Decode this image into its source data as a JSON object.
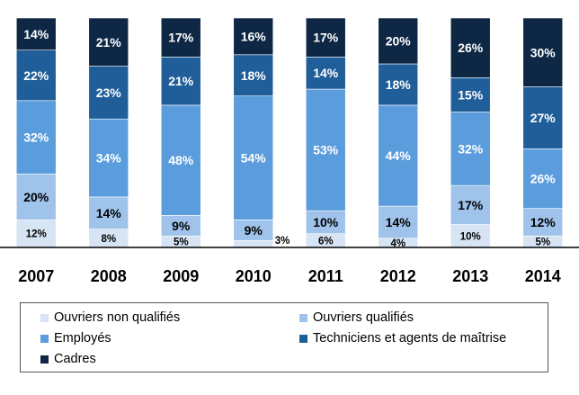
{
  "chart_data": {
    "type": "bar",
    "stacked": true,
    "normalized_percent": true,
    "categories": [
      "2007",
      "2008",
      "2009",
      "2010",
      "2011",
      "2012",
      "2013",
      "2014"
    ],
    "series": [
      {
        "name": "Ouvriers non qualifiés",
        "color": "#d6e4f4",
        "values": [
          12,
          8,
          5,
          3,
          6,
          4,
          10,
          5
        ],
        "labels": [
          "12%",
          "8%",
          "5%",
          "3%",
          "6%",
          "4%",
          "10%",
          "5%"
        ]
      },
      {
        "name": "Ouvriers qualifiés",
        "color": "#9fc3ea",
        "values": [
          20,
          14,
          9,
          9,
          10,
          14,
          17,
          12
        ],
        "labels": [
          "20%",
          "14%",
          "9%",
          "9%",
          "10%",
          "14%",
          "17%",
          "12%"
        ]
      },
      {
        "name": "Employés",
        "color": "#5b9ddc",
        "values": [
          32,
          34,
          48,
          54,
          53,
          44,
          32,
          26
        ],
        "labels": [
          "32%",
          "34%",
          "48%",
          "54%",
          "53%",
          "44%",
          "32%",
          "26%"
        ]
      },
      {
        "name": "Techniciens et agents de maîtrise",
        "color": "#1f5e99",
        "values": [
          22,
          23,
          21,
          18,
          14,
          18,
          15,
          27
        ],
        "labels": [
          "22%",
          "23%",
          "21%",
          "18%",
          "14%",
          "18%",
          "15%",
          "27%"
        ]
      },
      {
        "name": "Cadres",
        "color": "#0d2745",
        "values": [
          14,
          21,
          17,
          16,
          17,
          20,
          26,
          30
        ],
        "labels": [
          "14%",
          "21%",
          "17%",
          "16%",
          "17%",
          "20%",
          "26%",
          "30%"
        ]
      }
    ],
    "grid": false,
    "legend_position": "bottom"
  }
}
